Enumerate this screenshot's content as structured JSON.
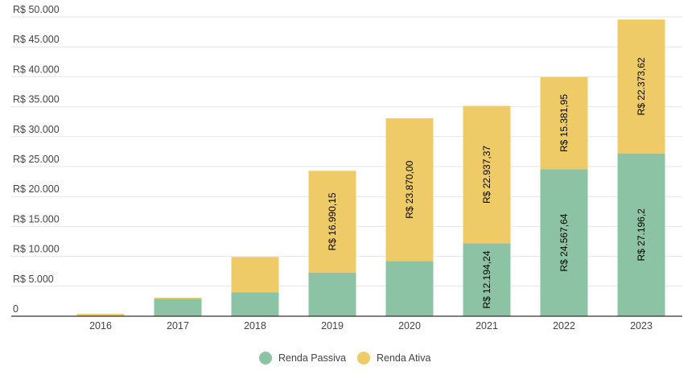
{
  "chart_data": {
    "type": "bar",
    "stacked": true,
    "categories": [
      "2016",
      "2017",
      "2018",
      "2019",
      "2020",
      "2021",
      "2022",
      "2023"
    ],
    "series": [
      {
        "name": "Renda Passiva",
        "color": "#8cc3a4",
        "values": [
          0,
          2900,
          4000,
          7300,
          9200,
          12194.24,
          24567.64,
          27196.2
        ],
        "labels": [
          "",
          "",
          "",
          "",
          "",
          "R$ 12.194,24",
          "R$ 24.567,64",
          "R$ 27.196,2"
        ]
      },
      {
        "name": "Renda Ativa",
        "color": "#efcb68",
        "values": [
          400,
          200,
          5900,
          16990.15,
          23870.0,
          22937.37,
          15381.95,
          22373.62
        ],
        "labels": [
          "",
          "",
          "",
          "R$ 16.990,15",
          "R$ 23.870,00",
          "R$ 22.937,37",
          "R$ 15.381,95",
          "R$ 22.373,62"
        ]
      }
    ],
    "y_ticks": [
      {
        "value": 0,
        "label": "0"
      },
      {
        "value": 5000,
        "label": "R$ 5.000"
      },
      {
        "value": 10000,
        "label": "R$ 10.000"
      },
      {
        "value": 15000,
        "label": "R$ 15.000"
      },
      {
        "value": 20000,
        "label": "R$ 20.000"
      },
      {
        "value": 25000,
        "label": "R$ 25.000"
      },
      {
        "value": 30000,
        "label": "R$ 30.000"
      },
      {
        "value": 35000,
        "label": "R$ 35.000"
      },
      {
        "value": 40000,
        "label": "R$ 40.000"
      },
      {
        "value": 45000,
        "label": "R$ 45.000"
      },
      {
        "value": 50000,
        "label": "R$ 50.000"
      }
    ],
    "ylim": [
      0,
      50000
    ],
    "grid": true,
    "legend_position": "bottom-center",
    "title": "",
    "xlabel": "",
    "ylabel": "",
    "colors": {
      "grid": "#e6e6e6",
      "axis": "#333333",
      "tick_text": "#444444",
      "label_text": "#000000"
    }
  }
}
